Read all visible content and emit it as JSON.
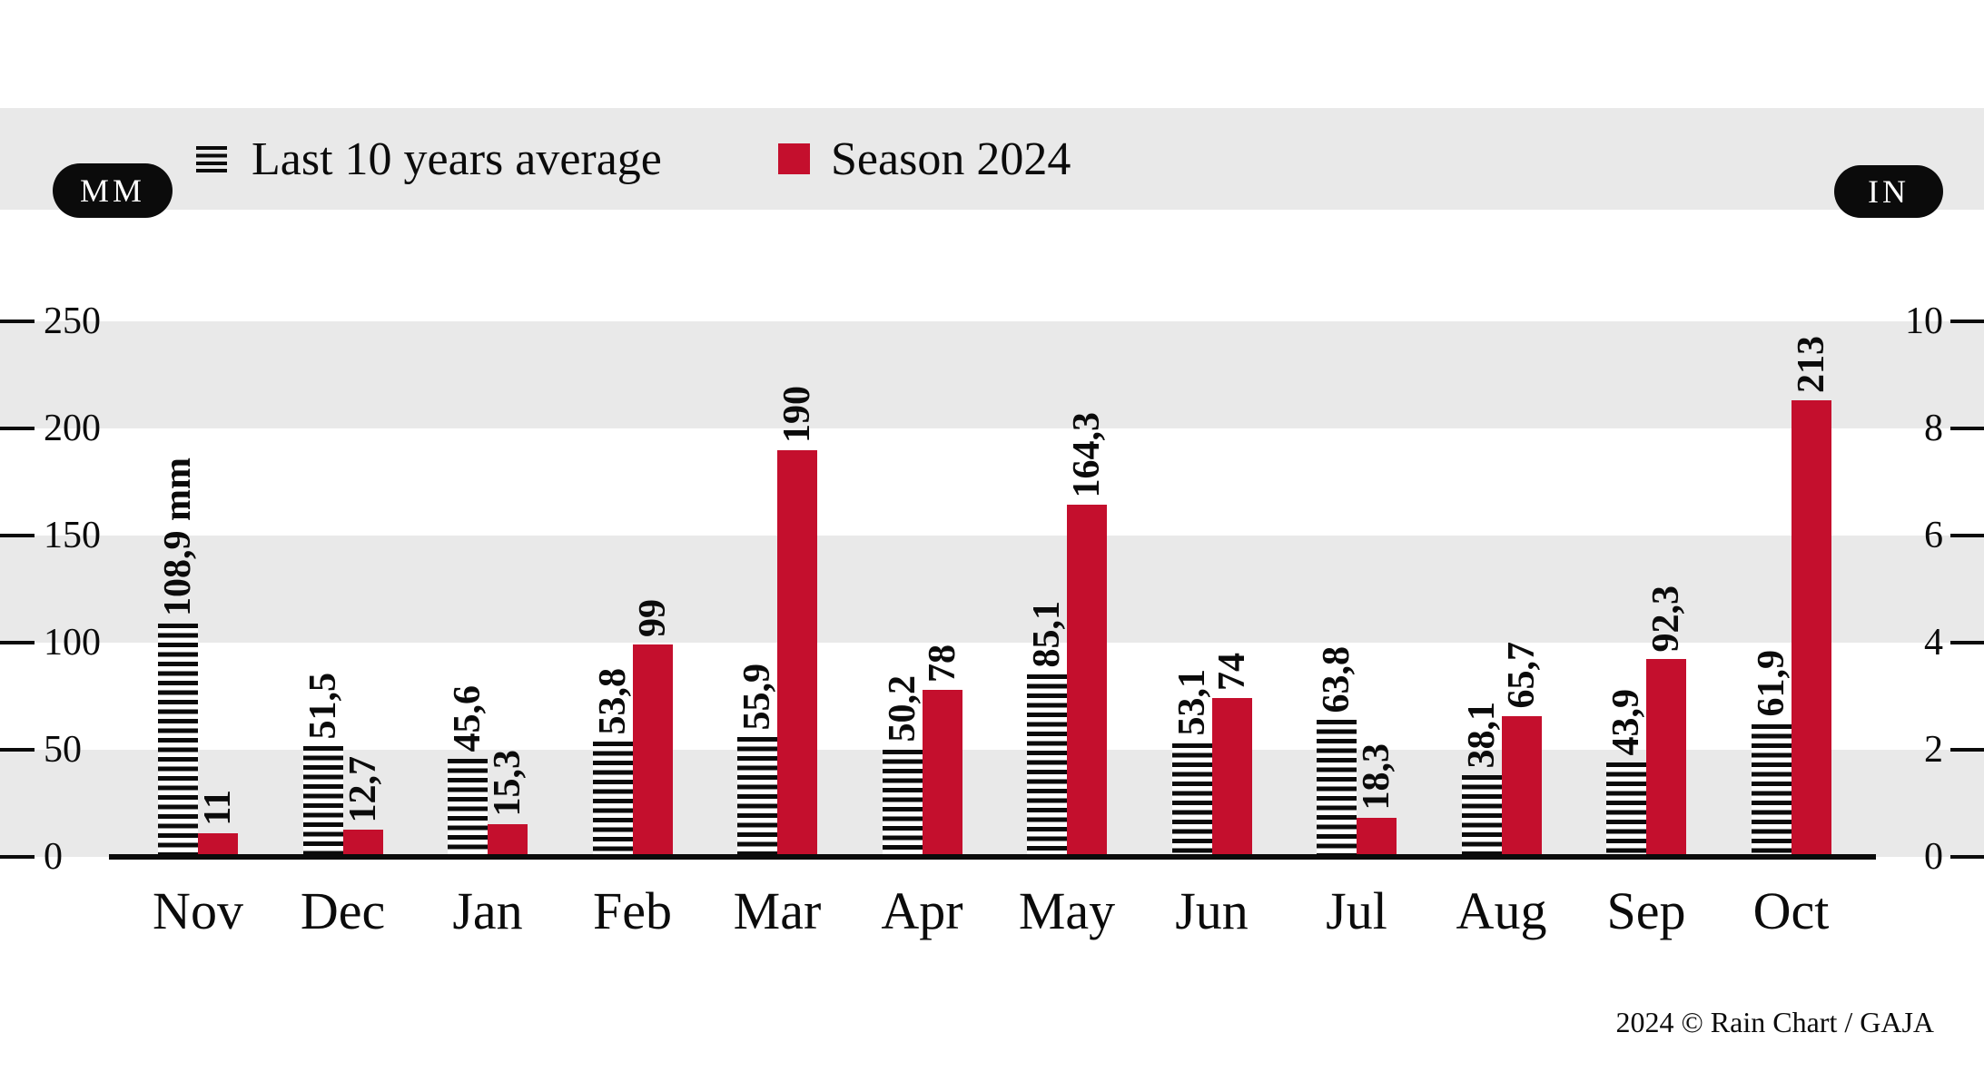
{
  "legend": {
    "avg_label": "Last 10 years average",
    "season_label": "Season 2024"
  },
  "units": {
    "left": "MM",
    "right": "IN"
  },
  "footer_credit": "2024 © Rain Chart / GAJA",
  "colors": {
    "season_red": "#C40F2D",
    "band_gray": "#E9E9E9",
    "ink": "#0B0B0B"
  },
  "chart_data": {
    "type": "bar",
    "title": "Rain Chart",
    "categories": [
      "Nov",
      "Dec",
      "Jan",
      "Feb",
      "Mar",
      "Apr",
      "May",
      "Jun",
      "Jul",
      "Aug",
      "Sep",
      "Oct"
    ],
    "series": [
      {
        "name": "Last 10 years average",
        "values": [
          108.9,
          51.5,
          45.6,
          53.8,
          55.9,
          50.2,
          85.1,
          53.1,
          63.8,
          38.1,
          43.9,
          61.9
        ],
        "labels": [
          "108,9 mm",
          "51,5",
          "45,6",
          "53,8",
          "55,9",
          "50,2",
          "85,1",
          "53,1",
          "63,8",
          "38,1",
          "43,9",
          "61,9"
        ],
        "style": "black-horizontal-stripes"
      },
      {
        "name": "Season 2024",
        "values": [
          11,
          12.7,
          15.3,
          99,
          190,
          78,
          164.3,
          74,
          18.3,
          65.7,
          92.3,
          213
        ],
        "labels": [
          "11",
          "12,7",
          "15,3",
          "99",
          "190",
          "78",
          "164,3",
          "74",
          "18,3",
          "65,7",
          "92,3",
          "213"
        ],
        "style": "solid-red"
      }
    ],
    "ylabel_left": "MM",
    "ylabel_right": "IN",
    "y_ticks_left": [
      0,
      50,
      100,
      150,
      200,
      250
    ],
    "y_ticks_right": [
      0,
      2,
      4,
      6,
      8,
      10
    ],
    "ylim_mm": [
      0,
      250
    ],
    "grid": "alternating horizontal gray bands every 50 mm",
    "legend_position": "top"
  }
}
